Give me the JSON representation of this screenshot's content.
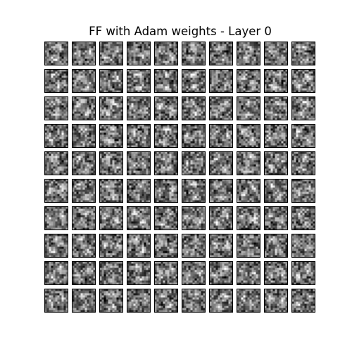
{
  "figure": {
    "title": "FF with Adam weights - Layer 0",
    "background_color": "#ffffff",
    "frame_color": "#000000",
    "grid_rows": 10,
    "grid_cols": 10,
    "colormap": "grayscale"
  }
}
